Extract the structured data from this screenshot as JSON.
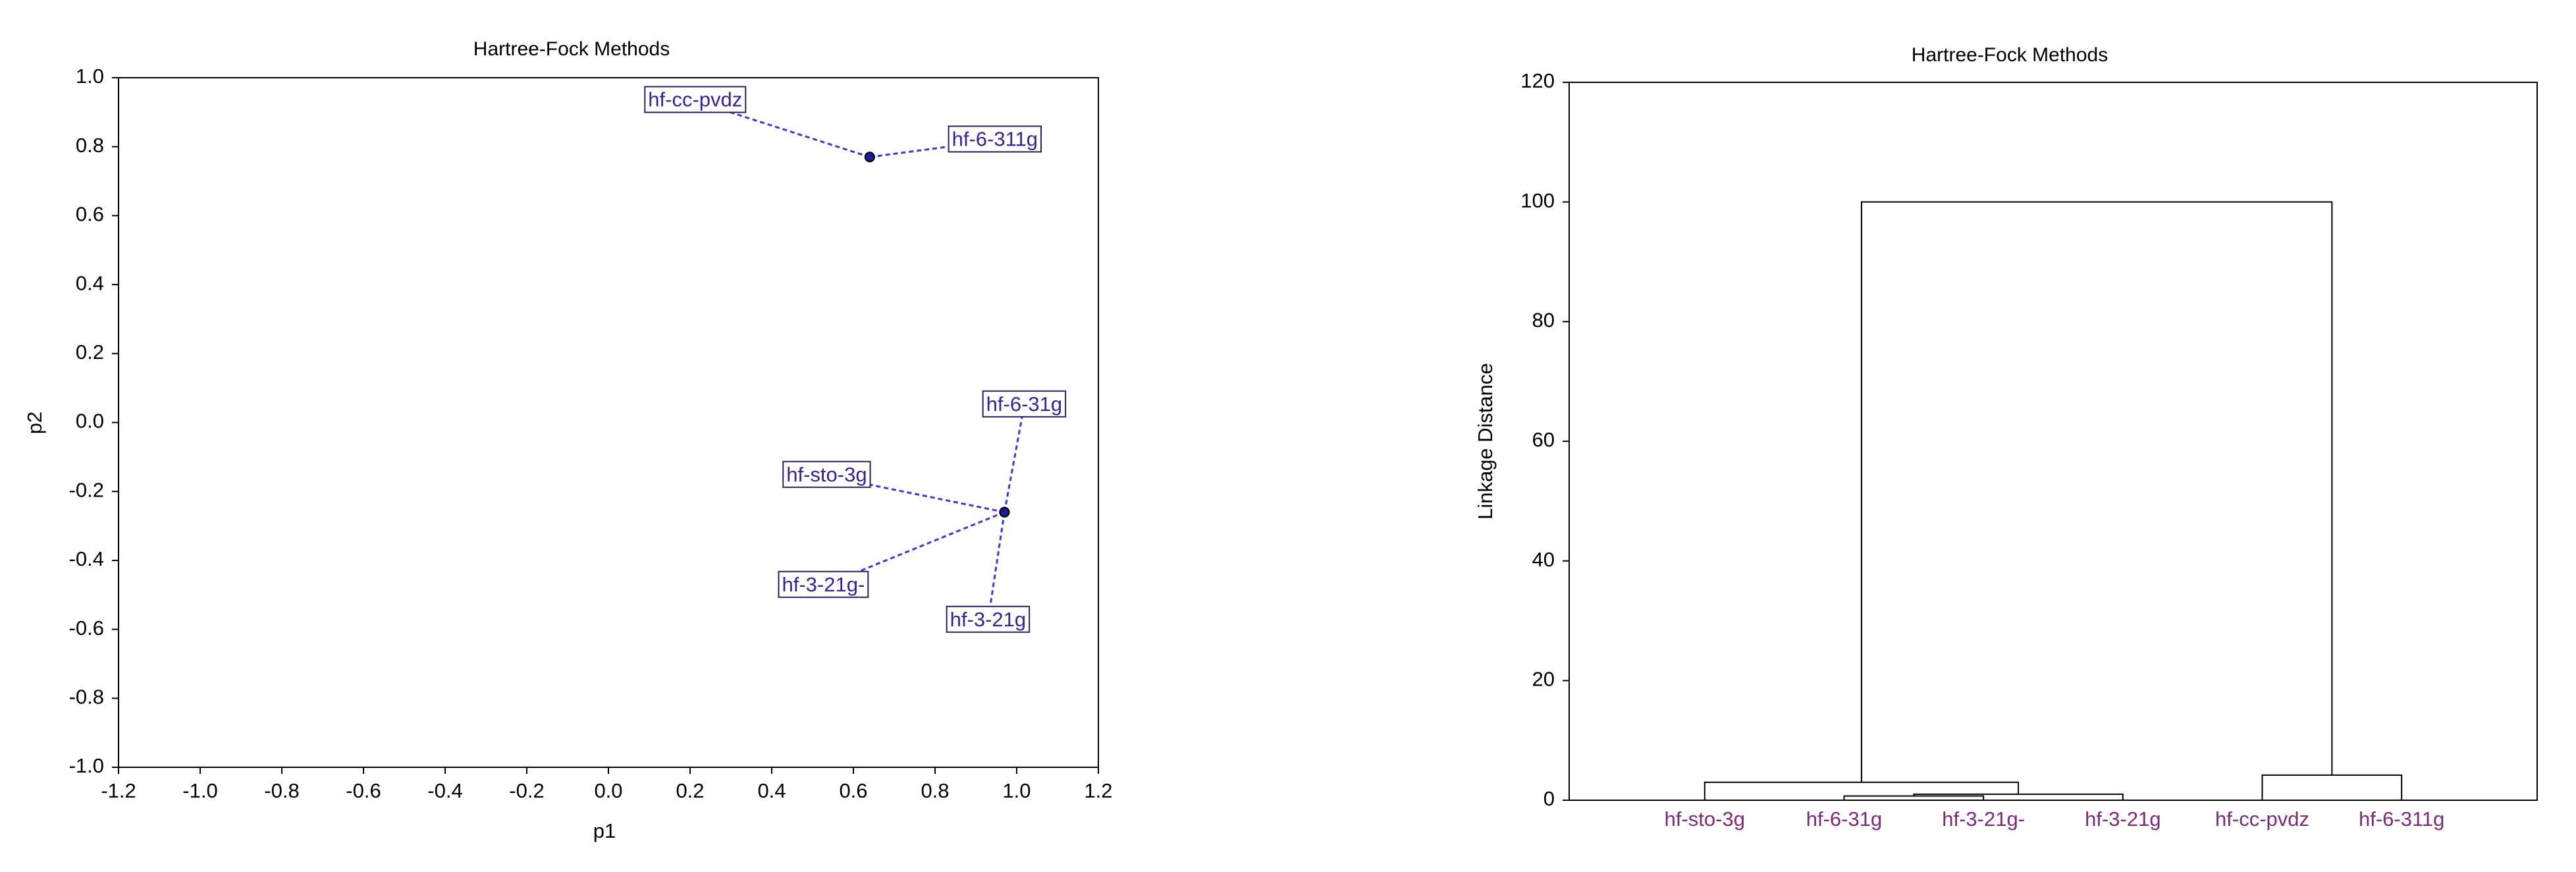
{
  "chart_data": [
    {
      "type": "scatter",
      "title": "Hartree-Fock Methods",
      "xlabel": "p1",
      "ylabel": "p2",
      "labels": [
        "hf-cc-pvdz",
        "hf-6-311g",
        "hf-6-31g",
        "hf-sto-3g",
        "hf-3-21g-",
        "hf-3-21g"
      ],
      "x": [
        0.64,
        0.64,
        0.97,
        0.97,
        0.97,
        0.97
      ],
      "y": [
        0.77,
        0.77,
        -0.26,
        -0.26,
        -0.26,
        -0.26
      ],
      "xlim": [
        -1.2,
        1.2
      ],
      "xticks": [
        -1.2,
        {
          "value": -1,
          "label": "-1.0"
        },
        -0.8,
        -0.6,
        -0.4,
        -0.2,
        {
          "value": 0,
          "label": "0.0"
        },
        0.2,
        0.4,
        0.6,
        0.8,
        {
          "value": 1,
          "label": "1.0"
        },
        1.2
      ],
      "ylim": [
        -1,
        1
      ],
      "yticks": [
        {
          "value": -1,
          "label": "-1.0"
        },
        -0.8,
        -0.6,
        -0.4,
        -0.2,
        {
          "value": 0,
          "label": "0.0"
        },
        0.2,
        0.4,
        0.6,
        0.8,
        {
          "value": 1,
          "label": "1.0"
        }
      ],
      "color": "#1a1a9a",
      "line_color": "#3a3ad0",
      "label_color": "#3b2290"
    },
    {
      "type": "dendrogram",
      "title": "Hartree-Fock Methods",
      "ylabel": "Linkage Distance",
      "leaves": [
        "hf-sto-3g",
        "hf-6-31g",
        "hf-3-21g-",
        "hf-3-21g",
        "hf-cc-pvdz",
        "hf-6-311g"
      ],
      "merges": [
        [
          1,
          2,
          0.7
        ],
        [
          6,
          3,
          1.0
        ],
        [
          0,
          7,
          3.0
        ],
        [
          4,
          5,
          4.2
        ],
        [
          8,
          9,
          100
        ]
      ],
      "ylim": [
        0,
        120
      ],
      "yticks": [
        0,
        20,
        40,
        60,
        80,
        100,
        120
      ],
      "color": "#000000",
      "label_color": "#7b2a7b"
    }
  ]
}
